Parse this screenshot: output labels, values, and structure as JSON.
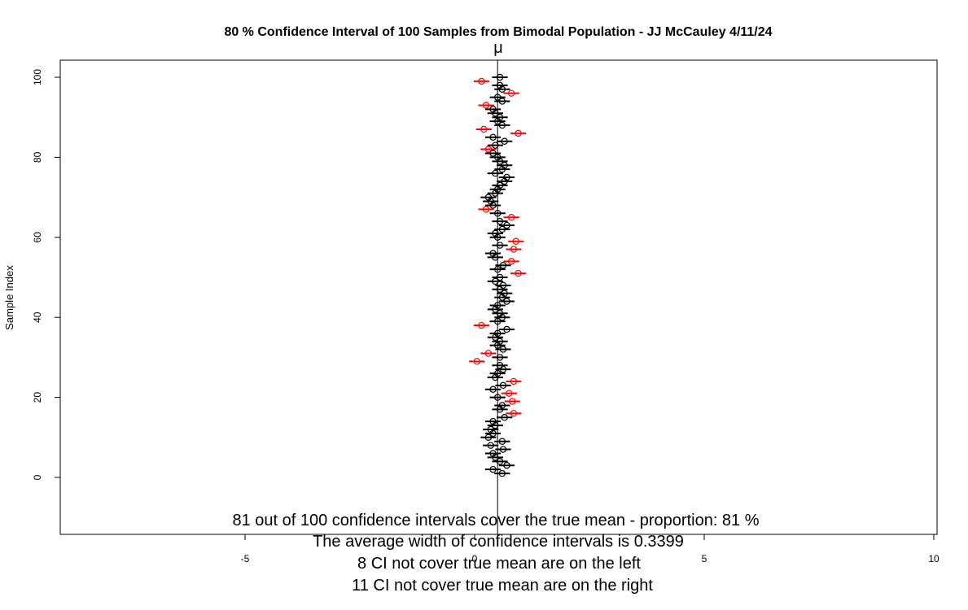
{
  "chart_data": {
    "type": "scatter",
    "title": "80 % Confidence Interval of 100  Samples from Bimodal Population -  JJ McCauley 4/11/24",
    "xlabel": "",
    "ylabel": "Sample Index",
    "xlim": [
      -10,
      10
    ],
    "ylim": [
      -14,
      104
    ],
    "x_ticks": [
      "-5",
      "0",
      "5",
      "10"
    ],
    "y_ticks": [
      "0",
      "20",
      "40",
      "60",
      "80",
      "100"
    ],
    "true_mean": 0.5,
    "true_mean_label": "μ",
    "half_width": 0.17,
    "colors": {
      "cover": "#000000",
      "miss": "#ff0000",
      "mean_line": "#000000"
    },
    "intervals": [
      {
        "index": 1,
        "mean": 0.6
      },
      {
        "index": 2,
        "mean": 0.4
      },
      {
        "index": 3,
        "mean": 0.7
      },
      {
        "index": 4,
        "mean": 0.55
      },
      {
        "index": 5,
        "mean": 0.45
      },
      {
        "index": 6,
        "mean": 0.4
      },
      {
        "index": 7,
        "mean": 0.62
      },
      {
        "index": 8,
        "mean": 0.35
      },
      {
        "index": 9,
        "mean": 0.6
      },
      {
        "index": 10,
        "mean": 0.3
      },
      {
        "index": 11,
        "mean": 0.4
      },
      {
        "index": 12,
        "mean": 0.35
      },
      {
        "index": 13,
        "mean": 0.45
      },
      {
        "index": 14,
        "mean": 0.4
      },
      {
        "index": 15,
        "mean": 0.65
      },
      {
        "index": 16,
        "mean": 0.85,
        "miss": true
      },
      {
        "index": 17,
        "mean": 0.55
      },
      {
        "index": 18,
        "mean": 0.6
      },
      {
        "index": 19,
        "mean": 0.82,
        "miss": true
      },
      {
        "index": 20,
        "mean": 0.5
      },
      {
        "index": 21,
        "mean": 0.75,
        "miss": true
      },
      {
        "index": 22,
        "mean": 0.4
      },
      {
        "index": 23,
        "mean": 0.62
      },
      {
        "index": 24,
        "mean": 0.85,
        "miss": true
      },
      {
        "index": 25,
        "mean": 0.45
      },
      {
        "index": 26,
        "mean": 0.5
      },
      {
        "index": 27,
        "mean": 0.62
      },
      {
        "index": 28,
        "mean": 0.55
      },
      {
        "index": 29,
        "mean": 0.05,
        "miss": true
      },
      {
        "index": 30,
        "mean": 0.55
      },
      {
        "index": 31,
        "mean": 0.3,
        "miss": true
      },
      {
        "index": 32,
        "mean": 0.62
      },
      {
        "index": 33,
        "mean": 0.5
      },
      {
        "index": 34,
        "mean": 0.55
      },
      {
        "index": 35,
        "mean": 0.45
      },
      {
        "index": 36,
        "mean": 0.5
      },
      {
        "index": 37,
        "mean": 0.7
      },
      {
        "index": 38,
        "mean": 0.15,
        "miss": true
      },
      {
        "index": 39,
        "mean": 0.5
      },
      {
        "index": 40,
        "mean": 0.6
      },
      {
        "index": 41,
        "mean": 0.55
      },
      {
        "index": 42,
        "mean": 0.45
      },
      {
        "index": 43,
        "mean": 0.5
      },
      {
        "index": 44,
        "mean": 0.7
      },
      {
        "index": 45,
        "mean": 0.6
      },
      {
        "index": 46,
        "mean": 0.65
      },
      {
        "index": 47,
        "mean": 0.55
      },
      {
        "index": 48,
        "mean": 0.62
      },
      {
        "index": 49,
        "mean": 0.45
      },
      {
        "index": 50,
        "mean": 0.55
      },
      {
        "index": 51,
        "mean": 0.95,
        "miss": true
      },
      {
        "index": 52,
        "mean": 0.5
      },
      {
        "index": 53,
        "mean": 0.62
      },
      {
        "index": 54,
        "mean": 0.8,
        "miss": true
      },
      {
        "index": 55,
        "mean": 0.45
      },
      {
        "index": 56,
        "mean": 0.4
      },
      {
        "index": 57,
        "mean": 0.85,
        "miss": true
      },
      {
        "index": 58,
        "mean": 0.55
      },
      {
        "index": 59,
        "mean": 0.9,
        "miss": true
      },
      {
        "index": 60,
        "mean": 0.5
      },
      {
        "index": 61,
        "mean": 0.45
      },
      {
        "index": 62,
        "mean": 0.6
      },
      {
        "index": 63,
        "mean": 0.7
      },
      {
        "index": 64,
        "mean": 0.55
      },
      {
        "index": 65,
        "mean": 0.8,
        "miss": true
      },
      {
        "index": 66,
        "mean": 0.5
      },
      {
        "index": 67,
        "mean": 0.25,
        "miss": true
      },
      {
        "index": 68,
        "mean": 0.4
      },
      {
        "index": 69,
        "mean": 0.35
      },
      {
        "index": 70,
        "mean": 0.3
      },
      {
        "index": 71,
        "mean": 0.45
      },
      {
        "index": 72,
        "mean": 0.5
      },
      {
        "index": 73,
        "mean": 0.55
      },
      {
        "index": 74,
        "mean": 0.65
      },
      {
        "index": 75,
        "mean": 0.7
      },
      {
        "index": 76,
        "mean": 0.45
      },
      {
        "index": 77,
        "mean": 0.6
      },
      {
        "index": 78,
        "mean": 0.65
      },
      {
        "index": 79,
        "mean": 0.55
      },
      {
        "index": 80,
        "mean": 0.5
      },
      {
        "index": 81,
        "mean": 0.4
      },
      {
        "index": 82,
        "mean": 0.3,
        "miss": true
      },
      {
        "index": 83,
        "mean": 0.45
      },
      {
        "index": 84,
        "mean": 0.65
      },
      {
        "index": 85,
        "mean": 0.4
      },
      {
        "index": 86,
        "mean": 0.95,
        "miss": true
      },
      {
        "index": 87,
        "mean": 0.2,
        "miss": true
      },
      {
        "index": 88,
        "mean": 0.6
      },
      {
        "index": 89,
        "mean": 0.5
      },
      {
        "index": 90,
        "mean": 0.55
      },
      {
        "index": 91,
        "mean": 0.45
      },
      {
        "index": 92,
        "mean": 0.4
      },
      {
        "index": 93,
        "mean": 0.25,
        "miss": true
      },
      {
        "index": 94,
        "mean": 0.6
      },
      {
        "index": 95,
        "mean": 0.5
      },
      {
        "index": 96,
        "mean": 0.8,
        "miss": true
      },
      {
        "index": 97,
        "mean": 0.6
      },
      {
        "index": 98,
        "mean": 0.55
      },
      {
        "index": 99,
        "mean": 0.15,
        "miss": true
      },
      {
        "index": 100,
        "mean": 0.55
      }
    ],
    "annotations": [
      "81 out of 100 confidence intervals cover the true mean - proportion: 81 %",
      "The average width of confidence intervals is 0.3399",
      "8 CI not cover true mean are on the left",
      "11 CI not cover true mean are on the right"
    ]
  }
}
